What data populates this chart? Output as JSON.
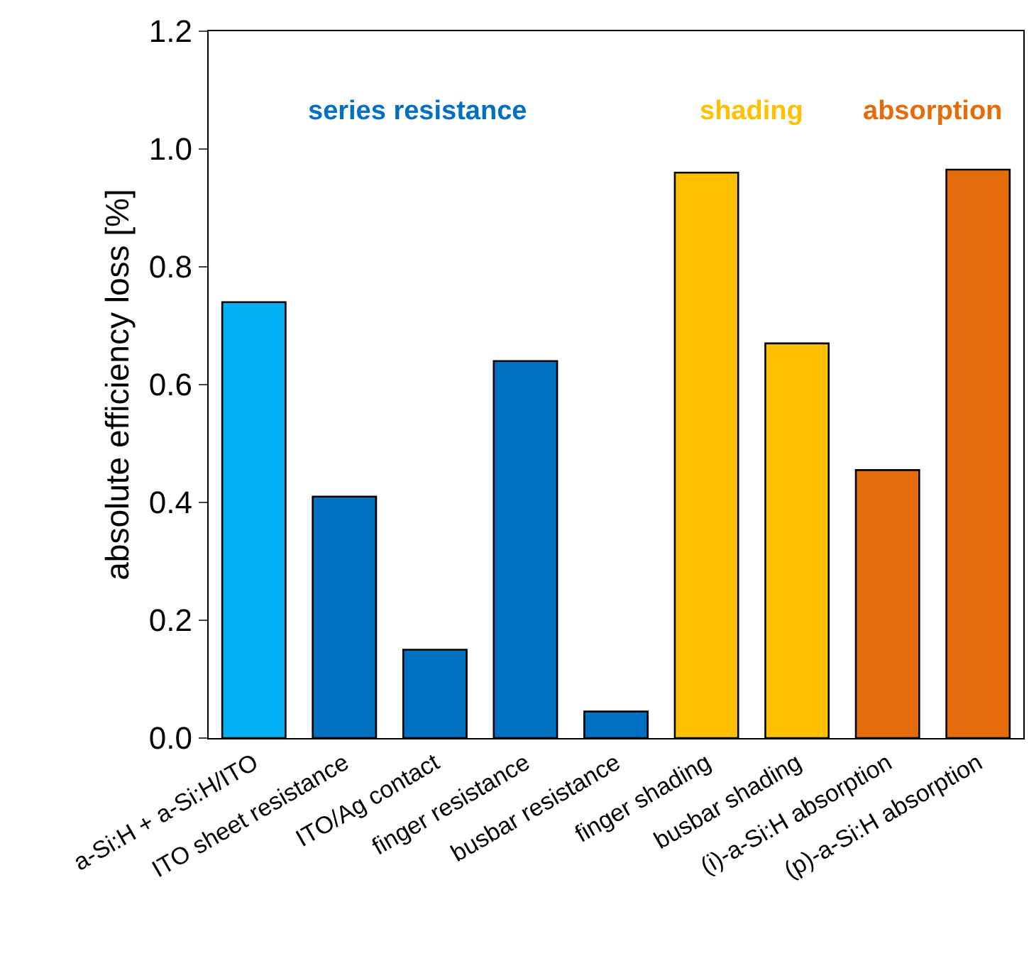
{
  "chart_data": {
    "type": "bar",
    "ylabel": "absolute efficiency loss [%]",
    "categories": [
      "a-Si:H + a-Si:H/ITO",
      "ITO sheet resistance",
      "ITO/Ag contact",
      "finger resistance",
      "busbar resistance",
      "finger shading",
      "busbar shading",
      "(i)-a-Si:H absorption",
      "(p)-a-Si:H absorption"
    ],
    "values": [
      0.74,
      0.41,
      0.15,
      0.64,
      0.045,
      0.96,
      0.67,
      0.455,
      0.965
    ],
    "colors": [
      "#00b0f0",
      "#0070c0",
      "#0070c0",
      "#0070c0",
      "#0070c0",
      "#ffc000",
      "#ffc000",
      "#e46c0a",
      "#e46c0a"
    ],
    "annotations": [
      "series resistance",
      "shading",
      "absorption"
    ],
    "ylim": [
      0,
      1.2
    ],
    "yticks": [
      {
        "value": 0,
        "label": "0.0"
      },
      0.2,
      0.4,
      0.6,
      0.8,
      {
        "value": 1,
        "label": "1.0"
      },
      1.2
    ],
    "grid": false
  }
}
